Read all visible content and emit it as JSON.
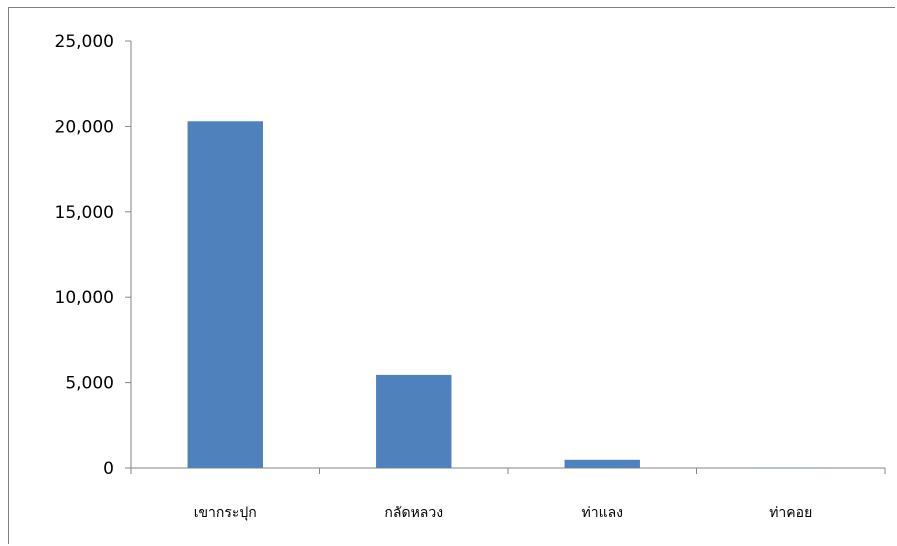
{
  "chart_data": {
    "type": "bar",
    "categories": [
      "เขากระปุก",
      "กลัดหลวง",
      "ท่าแลง",
      "ท่าคอย"
    ],
    "values": [
      20300,
      5450,
      480,
      20
    ],
    "ylim": [
      0,
      25000
    ],
    "yticks": [
      "0",
      "5,000",
      "10,000",
      "15,000",
      "20,000",
      "25,000"
    ],
    "bar_color": "#4F81BD",
    "grid": false,
    "legend": false
  }
}
